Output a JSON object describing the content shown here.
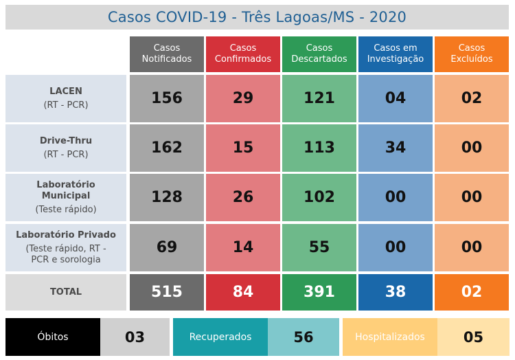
{
  "title": "Casos COVID-19 - Três Lagoas/MS - 2020",
  "columns": [
    {
      "line1": "Casos",
      "line2": "Notificados",
      "color": "#6b6b6b"
    },
    {
      "line1": "Casos",
      "line2": "Confirmados",
      "color": "#d4323a"
    },
    {
      "line1": "Casos",
      "line2": "Descartados",
      "color": "#2e9a57"
    },
    {
      "line1": "Casos em",
      "line2": "Investigação",
      "color": "#1a68aa"
    },
    {
      "line1": "Casos",
      "line2": "Excluídos",
      "color": "#f5791f"
    }
  ],
  "cell_colors": [
    "#a6a6a6",
    "#e27c80",
    "#6eb98a",
    "#77a2cc",
    "#f6b182"
  ],
  "rows": [
    {
      "name_lines": [
        "LACEN"
      ],
      "sub_lines": [
        "(RT - PCR)"
      ],
      "values": [
        "156",
        "29",
        "121",
        "04",
        "02"
      ]
    },
    {
      "name_lines": [
        "Drive-Thru"
      ],
      "sub_lines": [
        "(RT - PCR)"
      ],
      "values": [
        "162",
        "15",
        "113",
        "34",
        "00"
      ]
    },
    {
      "name_lines": [
        "Laboratório",
        "Municipal"
      ],
      "sub_lines": [
        "(Teste rápido)"
      ],
      "values": [
        "128",
        "26",
        "102",
        "00",
        "00"
      ]
    },
    {
      "name_lines": [
        "Laboratório Privado"
      ],
      "sub_lines": [
        "(Teste rápido, RT -",
        "PCR e sorologia"
      ],
      "values": [
        "69",
        "14",
        "55",
        "00",
        "00"
      ]
    }
  ],
  "total": {
    "label": "TOTAL",
    "values": [
      "515",
      "84",
      "391",
      "38",
      "02"
    ]
  },
  "summary": [
    {
      "label": "Óbitos",
      "value": "03",
      "label_bg": "#000000",
      "label_color": "#ffffff",
      "value_bg": "#d0d0d0"
    },
    {
      "label": "Recuperados",
      "value": "56",
      "label_bg": "#189ea7",
      "label_color": "#ffffff",
      "value_bg": "#7fc8cc"
    },
    {
      "label": "Hospitalizados",
      "value": "05",
      "label_bg": "#ffcf7a",
      "label_color": "#ffffff",
      "value_bg": "#ffe2a9"
    }
  ]
}
